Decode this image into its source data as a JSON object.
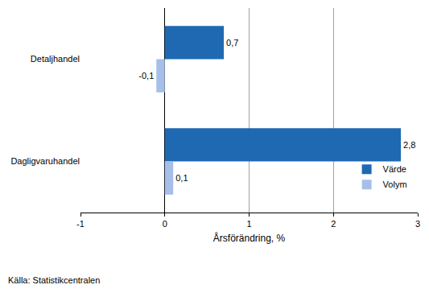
{
  "chart_data": {
    "type": "bar",
    "orientation": "horizontal",
    "categories": [
      "Detaljhandel",
      "Dagligvaruhandel"
    ],
    "series": [
      {
        "name": "Värde",
        "color": "#1f69b3",
        "values": [
          0.7,
          2.8
        ],
        "value_labels": [
          "0,7",
          "2,8"
        ]
      },
      {
        "name": "Volym",
        "color": "#a7bfe8",
        "values": [
          -0.1,
          0.1
        ],
        "value_labels": [
          "-0,1",
          "0,1"
        ]
      }
    ],
    "x_label": "Årsförändring, %",
    "xlim": [
      -1,
      3
    ],
    "xticks": [
      -1,
      0,
      1,
      2,
      3
    ],
    "grid": true,
    "data_labels": true,
    "legend": "lower right",
    "source": "Källa: Statistikcentralen"
  }
}
